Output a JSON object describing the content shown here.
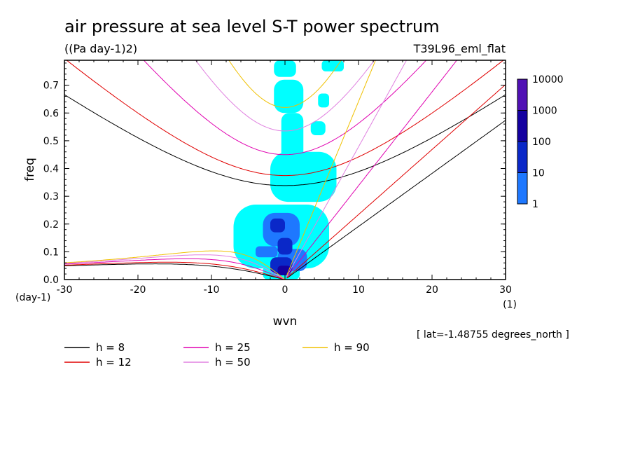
{
  "chart_data": {
    "type": "heatmap",
    "title": "air pressure at sea level S-T power spectrum",
    "units_label": "((Pa day-1)2)",
    "experiment_label": "T39L96_eml_flat",
    "xlabel": "wvn",
    "ylabel": "freq",
    "y_unit_label": "(day-1)",
    "x_unit_label": "(1)",
    "xlim": [
      -30,
      30
    ],
    "ylim": [
      0,
      0.79
    ],
    "x_ticks": [
      "-30",
      "-20",
      "-10",
      "0",
      "10",
      "20",
      "30"
    ],
    "y_ticks": [
      "0.0",
      "0.1",
      "0.2",
      "0.3",
      "0.4",
      "0.5",
      "0.6",
      "0.7"
    ],
    "colorbar": {
      "levels": [
        "1",
        "10",
        "100",
        "1000",
        "10000"
      ],
      "colors": [
        "#00ffff",
        "#1e78ff",
        "#0a28c8",
        "#1400a0",
        "#5010b4"
      ]
    },
    "shaded_regions": [
      {
        "level": 1,
        "x0": -1.5,
        "x1": 1.5,
        "y0": 0.73,
        "y1": 0.79
      },
      {
        "level": 1,
        "x0": -1.5,
        "x1": 2.5,
        "y0": 0.6,
        "y1": 0.72
      },
      {
        "level": 1,
        "x0": -0.5,
        "x1": 2.5,
        "y0": 0.42,
        "y1": 0.6
      },
      {
        "level": 1,
        "x0": -2,
        "x1": 7,
        "y0": 0.28,
        "y1": 0.46
      },
      {
        "level": 1,
        "x0": -7,
        "x1": 6,
        "y0": 0.04,
        "y1": 0.27
      },
      {
        "level": 1,
        "x0": -3,
        "x1": 2,
        "y0": 0.0,
        "y1": 0.05
      },
      {
        "level": 1,
        "x0": 5,
        "x1": 8,
        "y0": 0.75,
        "y1": 0.79
      },
      {
        "level": 1,
        "x0": 4.5,
        "x1": 6,
        "y0": 0.62,
        "y1": 0.67
      },
      {
        "level": 1,
        "x0": 3.5,
        "x1": 5.5,
        "y0": 0.52,
        "y1": 0.57
      },
      {
        "level": 10,
        "x0": -3,
        "x1": 2,
        "y0": 0.12,
        "y1": 0.24
      },
      {
        "level": 10,
        "x0": -4,
        "x1": -1,
        "y0": 0.08,
        "y1": 0.12
      },
      {
        "level": 10,
        "x0": -1,
        "x1": 3,
        "y0": 0.03,
        "y1": 0.11
      },
      {
        "level": 100,
        "x0": -2,
        "x1": 0,
        "y0": 0.17,
        "y1": 0.22
      },
      {
        "level": 100,
        "x0": -1,
        "x1": 1,
        "y0": 0.09,
        "y1": 0.15
      },
      {
        "level": 100,
        "x0": -2,
        "x1": 1,
        "y0": 0.02,
        "y1": 0.08
      },
      {
        "level": 1000,
        "x0": -1,
        "x1": 0.8,
        "y0": 0.015,
        "y1": 0.05
      }
    ],
    "series": [
      {
        "name": "h =  8",
        "equivalent_depth": 8,
        "color": "#000000"
      },
      {
        "name": "h = 12",
        "equivalent_depth": 12,
        "color": "#e00000"
      },
      {
        "name": "h = 25",
        "equivalent_depth": 25,
        "color": "#e000b0"
      },
      {
        "name": "h = 50",
        "equivalent_depth": 50,
        "color": "#e080e0"
      },
      {
        "name": "h = 90",
        "equivalent_depth": 90,
        "color": "#f0c000"
      }
    ],
    "annotation": "[ lat=-1.48755 degrees_north ]"
  }
}
